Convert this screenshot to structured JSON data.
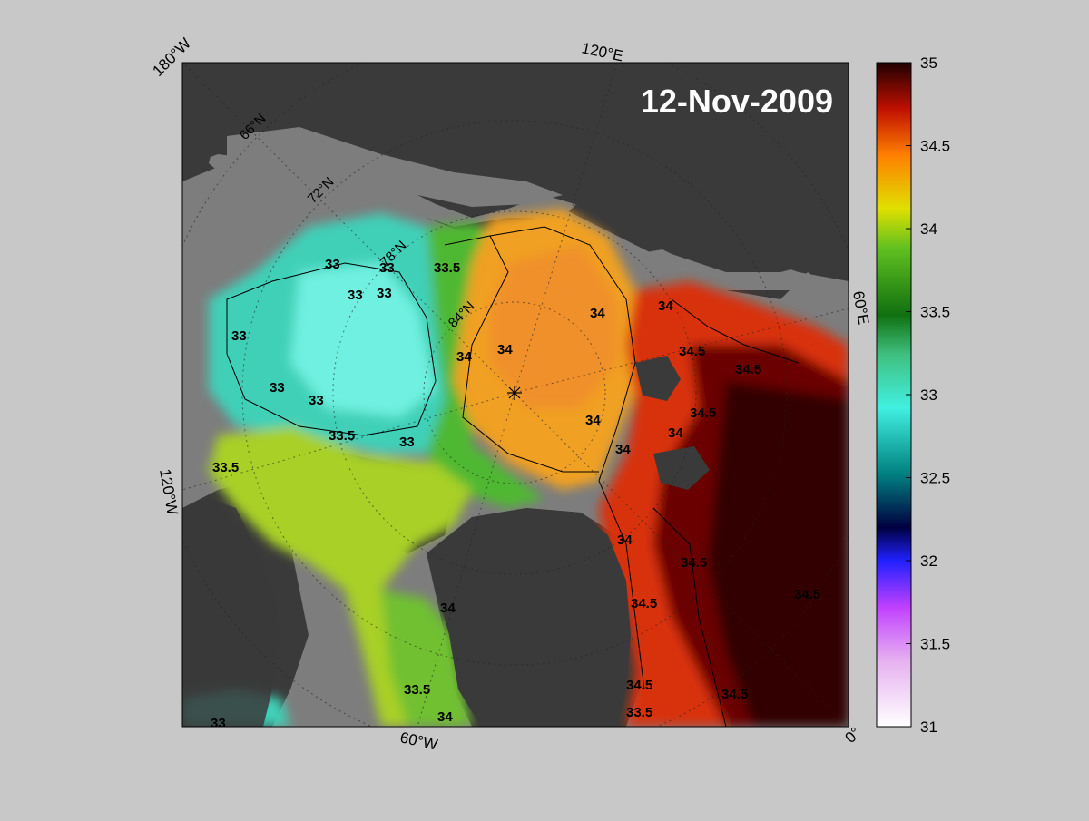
{
  "map": {
    "date": "12-Nov-2009",
    "lon_labels": {
      "w180": "180°W",
      "e120": "120°E",
      "e60": "60°E",
      "w120": "120°W",
      "w60": "60°W",
      "zero": "0°"
    },
    "lat_labels": {
      "n66": "66°N",
      "n72": "72°N",
      "n78": "78°N",
      "n84": "84°N"
    },
    "contour_labels": [
      "33",
      "33",
      "33",
      "33",
      "33",
      "33",
      "33",
      "33",
      "33",
      "33.5",
      "33.5",
      "33.5",
      "33.5",
      "33.5",
      "34",
      "34",
      "34",
      "34",
      "34",
      "34",
      "34",
      "34",
      "34",
      "34",
      "34.5",
      "34.5",
      "34.5",
      "34.5",
      "34.5",
      "34.5",
      "34.5",
      "34.5"
    ],
    "colors": {
      "background": "#c8c8c8",
      "land": "#3a3a3a",
      "ice_shelf": "#7d7d7d"
    }
  },
  "colorbar": {
    "ticks": [
      "35",
      "34.5",
      "34",
      "33.5",
      "33",
      "32.5",
      "32",
      "31.5",
      "31"
    ],
    "range": [
      31,
      35
    ]
  }
}
